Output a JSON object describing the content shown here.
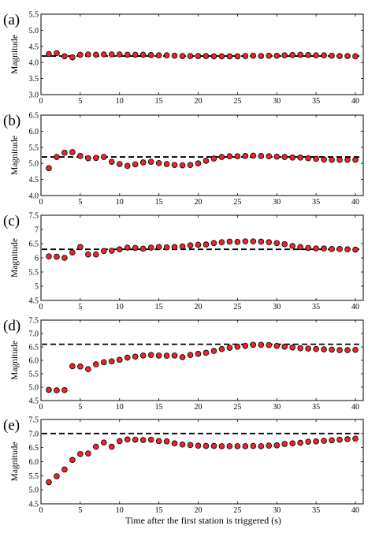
{
  "figure": {
    "xlabel": "Time after the first station is triggered (s)"
  },
  "style": {
    "marker_fill": "#e8262b",
    "marker_stroke": "#000000",
    "reference_line": "#000000",
    "axis_color": "#000000"
  },
  "chart_data": [
    {
      "type": "scatter",
      "panel": "(a)",
      "ylabel": "Magnitude",
      "xlim": [
        0,
        41
      ],
      "ylim": [
        3.0,
        5.5
      ],
      "xticks": [
        0,
        5,
        10,
        15,
        20,
        25,
        30,
        35,
        40
      ],
      "yticks": [
        3.0,
        3.5,
        4.0,
        4.5,
        5.0,
        5.5
      ],
      "ytick_labels": [
        "3.0",
        "3.5",
        "4.0",
        "4.5",
        "5.0",
        "5.5"
      ],
      "reference_magnitude": 4.2,
      "x": [
        1,
        2,
        3,
        4,
        5,
        6,
        7,
        8,
        9,
        10,
        11,
        12,
        13,
        14,
        15,
        16,
        17,
        18,
        19,
        20,
        21,
        22,
        23,
        24,
        25,
        26,
        27,
        28,
        29,
        30,
        31,
        32,
        33,
        34,
        35,
        36,
        37,
        38,
        39,
        40
      ],
      "y": [
        4.26,
        4.29,
        4.19,
        4.16,
        4.24,
        4.25,
        4.24,
        4.25,
        4.25,
        4.25,
        4.24,
        4.24,
        4.24,
        4.23,
        4.22,
        4.22,
        4.21,
        4.2,
        4.2,
        4.2,
        4.2,
        4.19,
        4.19,
        4.19,
        4.19,
        4.2,
        4.21,
        4.2,
        4.21,
        4.21,
        4.22,
        4.23,
        4.24,
        4.23,
        4.22,
        4.22,
        4.21,
        4.2,
        4.2,
        4.19
      ]
    },
    {
      "type": "scatter",
      "panel": "(b)",
      "ylabel": "Magnitude",
      "xlim": [
        0,
        41
      ],
      "ylim": [
        4.0,
        6.5
      ],
      "xticks": [
        0,
        5,
        10,
        15,
        20,
        25,
        30,
        35,
        40
      ],
      "yticks": [
        4.0,
        4.5,
        5.0,
        5.5,
        6.0,
        6.5
      ],
      "ytick_labels": [
        "4.0",
        "4.5",
        "5.0",
        "5.5",
        "6.0",
        "6.5"
      ],
      "reference_magnitude": 5.2,
      "x": [
        1,
        2,
        3,
        4,
        5,
        6,
        7,
        8,
        9,
        10,
        11,
        12,
        13,
        14,
        15,
        16,
        17,
        18,
        19,
        20,
        21,
        22,
        23,
        24,
        25,
        26,
        27,
        28,
        29,
        30,
        31,
        32,
        33,
        34,
        35,
        36,
        37,
        38,
        39,
        40
      ],
      "y": [
        4.85,
        5.2,
        5.33,
        5.35,
        5.23,
        5.16,
        5.17,
        5.2,
        5.05,
        4.98,
        4.92,
        4.97,
        5.03,
        5.05,
        5.01,
        4.98,
        4.95,
        4.94,
        4.95,
        5.0,
        5.08,
        5.15,
        5.2,
        5.22,
        5.22,
        5.23,
        5.24,
        5.23,
        5.22,
        5.21,
        5.2,
        5.18,
        5.18,
        5.16,
        5.14,
        5.12,
        5.11,
        5.11,
        5.11,
        5.11
      ]
    },
    {
      "type": "scatter",
      "panel": "(c)",
      "ylabel": "Magnitude",
      "xlim": [
        0,
        41
      ],
      "ylim": [
        4.5,
        7.5
      ],
      "xticks": [
        0,
        5,
        10,
        15,
        20,
        25,
        30,
        35,
        40
      ],
      "yticks": [
        4.5,
        5.0,
        5.5,
        6.0,
        6.5,
        7.0,
        7.5
      ],
      "ytick_labels": [
        "4.5",
        "5",
        "5.5",
        "6",
        "6.5",
        "7",
        "7.5"
      ],
      "reference_magnitude": 6.3,
      "x": [
        1,
        2,
        3,
        4,
        5,
        6,
        7,
        8,
        9,
        10,
        11,
        12,
        13,
        14,
        15,
        16,
        17,
        18,
        19,
        20,
        21,
        22,
        23,
        24,
        25,
        26,
        27,
        28,
        29,
        30,
        31,
        32,
        33,
        34,
        35,
        36,
        37,
        38,
        39,
        40
      ],
      "y": [
        6.05,
        6.04,
        6.0,
        6.19,
        6.38,
        6.12,
        6.12,
        6.24,
        6.25,
        6.3,
        6.36,
        6.35,
        6.32,
        6.36,
        6.38,
        6.37,
        6.38,
        6.4,
        6.44,
        6.46,
        6.47,
        6.52,
        6.55,
        6.57,
        6.56,
        6.58,
        6.58,
        6.57,
        6.55,
        6.52,
        6.48,
        6.42,
        6.38,
        6.35,
        6.33,
        6.33,
        6.31,
        6.31,
        6.3,
        6.29
      ]
    },
    {
      "type": "scatter",
      "panel": "(d)",
      "ylabel": "Magnitude",
      "xlim": [
        0,
        41
      ],
      "ylim": [
        4.5,
        7.5
      ],
      "xticks": [
        0,
        5,
        10,
        15,
        20,
        25,
        30,
        35,
        40
      ],
      "yticks": [
        4.5,
        5.0,
        5.5,
        6.0,
        6.5,
        7.0,
        7.5
      ],
      "ytick_labels": [
        "4.5",
        "5.0",
        "5.5",
        "6.0",
        "6.5",
        "7.0",
        "7.5"
      ],
      "reference_magnitude": 6.6,
      "x": [
        1,
        2,
        3,
        4,
        5,
        6,
        7,
        8,
        9,
        10,
        11,
        12,
        13,
        14,
        15,
        16,
        17,
        18,
        19,
        20,
        21,
        22,
        23,
        24,
        25,
        26,
        27,
        28,
        29,
        30,
        31,
        32,
        33,
        34,
        35,
        36,
        37,
        38,
        39,
        40
      ],
      "y": [
        4.9,
        4.88,
        4.89,
        5.78,
        5.77,
        5.67,
        5.85,
        5.93,
        5.96,
        6.02,
        6.1,
        6.14,
        6.18,
        6.2,
        6.18,
        6.17,
        6.18,
        6.12,
        6.2,
        6.24,
        6.28,
        6.35,
        6.42,
        6.47,
        6.51,
        6.54,
        6.58,
        6.58,
        6.57,
        6.54,
        6.51,
        6.48,
        6.45,
        6.44,
        6.42,
        6.41,
        6.4,
        6.38,
        6.38,
        6.39
      ]
    },
    {
      "type": "scatter",
      "panel": "(e)",
      "ylabel": "Magnitude",
      "xlim": [
        0,
        41
      ],
      "ylim": [
        4.5,
        7.5
      ],
      "xticks": [
        0,
        5,
        10,
        15,
        20,
        25,
        30,
        35,
        40
      ],
      "yticks": [
        4.5,
        5.0,
        5.5,
        6.0,
        6.5,
        7.0,
        7.5
      ],
      "ytick_labels": [
        "4.5",
        "5.0",
        "5.5",
        "6.0",
        "6.5",
        "7.0",
        "7.5"
      ],
      "reference_magnitude": 7.0,
      "x": [
        1,
        2,
        3,
        4,
        5,
        6,
        7,
        8,
        9,
        10,
        11,
        12,
        13,
        14,
        15,
        16,
        17,
        18,
        19,
        20,
        21,
        22,
        23,
        24,
        25,
        26,
        27,
        28,
        29,
        30,
        31,
        32,
        33,
        34,
        35,
        36,
        37,
        38,
        39,
        40
      ],
      "y": [
        5.27,
        5.48,
        5.72,
        6.06,
        6.27,
        6.29,
        6.53,
        6.68,
        6.53,
        6.73,
        6.79,
        6.78,
        6.77,
        6.78,
        6.73,
        6.72,
        6.65,
        6.61,
        6.59,
        6.57,
        6.56,
        6.56,
        6.55,
        6.55,
        6.55,
        6.55,
        6.56,
        6.55,
        6.57,
        6.58,
        6.63,
        6.65,
        6.67,
        6.71,
        6.72,
        6.74,
        6.76,
        6.78,
        6.8,
        6.82
      ]
    }
  ]
}
